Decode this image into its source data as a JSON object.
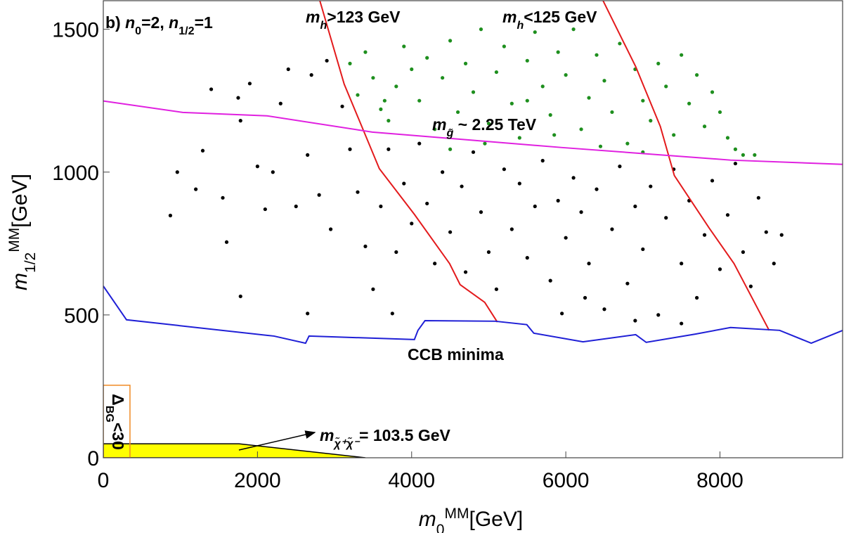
{
  "chart_data": {
    "type": "scatter",
    "xlabel": [
      [
        "m",
        "i"
      ],
      [
        "0",
        "sub"
      ],
      [
        "MM",
        "sup"
      ],
      [
        "[GeV]",
        ""
      ]
    ],
    "ylabel": [
      [
        "m",
        "i"
      ],
      [
        "1/2",
        "sub"
      ],
      [
        "MM",
        "sup"
      ],
      [
        "[GeV]",
        ""
      ]
    ],
    "xlim": [
      0,
      9600
    ],
    "ylim": [
      0,
      1600
    ],
    "xticks": [
      0,
      2000,
      4000,
      6000,
      8000
    ],
    "yticks": [
      0,
      500,
      1000,
      1500
    ],
    "series": [
      {
        "color": "#000000",
        "x": [
          870,
          960,
          1200,
          1290,
          1400,
          1550,
          1600,
          1750,
          1780,
          1780,
          1900,
          2000,
          2100,
          2200,
          2300,
          2400,
          2500,
          2650,
          2700,
          2800,
          2900,
          2950,
          3100,
          3200,
          3300,
          3400,
          3500,
          3600,
          3700,
          3800,
          3900,
          4000,
          4100,
          4200,
          4300,
          4400,
          4500,
          4650,
          4700,
          4800,
          4900,
          5000,
          5100,
          5200,
          5300,
          5400,
          5500,
          5600,
          5700,
          5800,
          5900,
          6000,
          6100,
          6200,
          6300,
          6400,
          6500,
          6600,
          6700,
          6800,
          6900,
          7000,
          7100,
          7200,
          7300,
          7400,
          7500,
          7600,
          7700,
          7800,
          7900,
          8000,
          8100,
          8200,
          8300,
          8400,
          8500,
          8600,
          8700,
          8800,
          6250,
          6900,
          7500,
          5950,
          3750,
          2650
        ],
        "values": [
          848,
          1000,
          940,
          1075,
          1290,
          910,
          755,
          1260,
          1180,
          565,
          1310,
          1020,
          870,
          1000,
          1240,
          1360,
          880,
          1060,
          1340,
          920,
          1390,
          800,
          1230,
          1080,
          930,
          740,
          590,
          880,
          1080,
          720,
          960,
          820,
          1100,
          890,
          680,
          1000,
          790,
          950,
          650,
          1070,
          860,
          720,
          590,
          1010,
          800,
          960,
          700,
          880,
          1040,
          620,
          900,
          770,
          980,
          860,
          680,
          940,
          520,
          800,
          1020,
          610,
          880,
          730,
          950,
          500,
          840,
          1010,
          680,
          900,
          560,
          780,
          970,
          660,
          850,
          1030,
          720,
          600,
          910,
          790,
          680,
          780,
          560,
          480,
          470,
          505,
          505,
          505
        ]
      },
      {
        "color": "#1e8f1e",
        "x": [
          3200,
          3300,
          3400,
          3500,
          3600,
          3700,
          3800,
          3900,
          4000,
          4100,
          4200,
          4300,
          4400,
          4500,
          4600,
          4700,
          4800,
          4900,
          5000,
          5100,
          5200,
          5300,
          5400,
          5500,
          5600,
          5700,
          5800,
          5900,
          6000,
          6100,
          6200,
          6300,
          6400,
          6500,
          6600,
          6700,
          6800,
          6900,
          7000,
          7100,
          7200,
          7300,
          7400,
          7500,
          7600,
          7700,
          7800,
          7900,
          8000,
          8100,
          8200,
          8300,
          8450,
          7000,
          6450,
          5850,
          4950,
          4500,
          3650,
          5500
        ],
        "values": [
          1380,
          1270,
          1420,
          1330,
          1220,
          1180,
          1300,
          1440,
          1360,
          1250,
          1400,
          1150,
          1330,
          1460,
          1210,
          1380,
          1280,
          1500,
          1170,
          1350,
          1440,
          1240,
          1120,
          1390,
          1490,
          1300,
          1200,
          1420,
          1340,
          1500,
          1150,
          1260,
          1410,
          1320,
          1210,
          1450,
          1100,
          1360,
          1250,
          1180,
          1380,
          1300,
          1130,
          1410,
          1240,
          1340,
          1160,
          1280,
          1210,
          1120,
          1080,
          1060,
          1060,
          1070,
          1090,
          1130,
          1100,
          1080,
          1250,
          1250
        ]
      }
    ],
    "lines": [
      {
        "color": "#e31a1c",
        "x": [
          2806,
          3125,
          3581,
          4036,
          4492,
          4629,
          4948,
          5112
        ],
        "values": [
          1603,
          1308,
          1012,
          852,
          680,
          606,
          544,
          475
        ]
      },
      {
        "color": "#e31a1c",
        "x": [
          6478,
          6907,
          7226,
          7408,
          7863,
          8182,
          8638
        ],
        "values": [
          1603,
          1369,
          1160,
          988,
          803,
          680,
          446
        ]
      },
      {
        "color": "#e020e0",
        "x": [
          0,
          1030,
          2123,
          3490,
          5950,
          8137,
          9594
        ],
        "values": [
          1249,
          1209,
          1197,
          1140,
          1086,
          1042,
          1027
        ]
      },
      {
        "color": "#1f1fd6",
        "x": [
          0,
          301,
          2214,
          2624,
          2669,
          4036,
          4082,
          4173,
          5084,
          5494,
          5585,
          6223,
          6907,
          7043,
          7681,
          8137,
          8774,
          9184,
          9594
        ],
        "values": [
          601,
          483,
          426,
          401,
          426,
          414,
          446,
          480,
          478,
          466,
          436,
          406,
          431,
          404,
          433,
          456,
          446,
          401,
          446
        ]
      }
    ],
    "regions": [
      {
        "fill": "#ffff00",
        "stroke": "#000000",
        "x": [
          0,
          0,
          1760,
          3400
        ],
        "values": [
          0,
          49,
          49,
          0
        ]
      },
      {
        "fill": "none",
        "stroke": "#f08a24",
        "x": [
          0,
          0,
          346,
          346
        ],
        "values": [
          0,
          254,
          254,
          0
        ]
      }
    ],
    "annotations": [
      [
        [
          "b) ",
          ""
        ],
        [
          "n",
          "i"
        ],
        [
          "0",
          "sub"
        ],
        [
          "=2, ",
          ""
        ],
        [
          "n",
          "i"
        ],
        [
          "1/2",
          "sub"
        ],
        [
          "=1",
          ""
        ]
      ],
      [
        [
          "m",
          "i"
        ],
        [
          "h",
          "isub"
        ],
        [
          ">123 GeV",
          ""
        ]
      ],
      [
        [
          "m",
          "i"
        ],
        [
          "h",
          "isub"
        ],
        [
          "<125 GeV",
          ""
        ]
      ],
      [
        [
          "m",
          "i"
        ],
        [
          "g̃",
          "isub"
        ],
        [
          " ~ 2.25 TeV",
          ""
        ]
      ],
      [
        [
          "CCB minima",
          ""
        ]
      ],
      [
        [
          "Δ",
          ""
        ],
        [
          "BG",
          "sub"
        ],
        [
          "<30",
          ""
        ]
      ],
      [
        [
          "m",
          "i"
        ],
        [
          "χ̃⁺χ̃⁻",
          "isub"
        ],
        [
          "= 103.5 GeV",
          ""
        ]
      ]
    ]
  }
}
